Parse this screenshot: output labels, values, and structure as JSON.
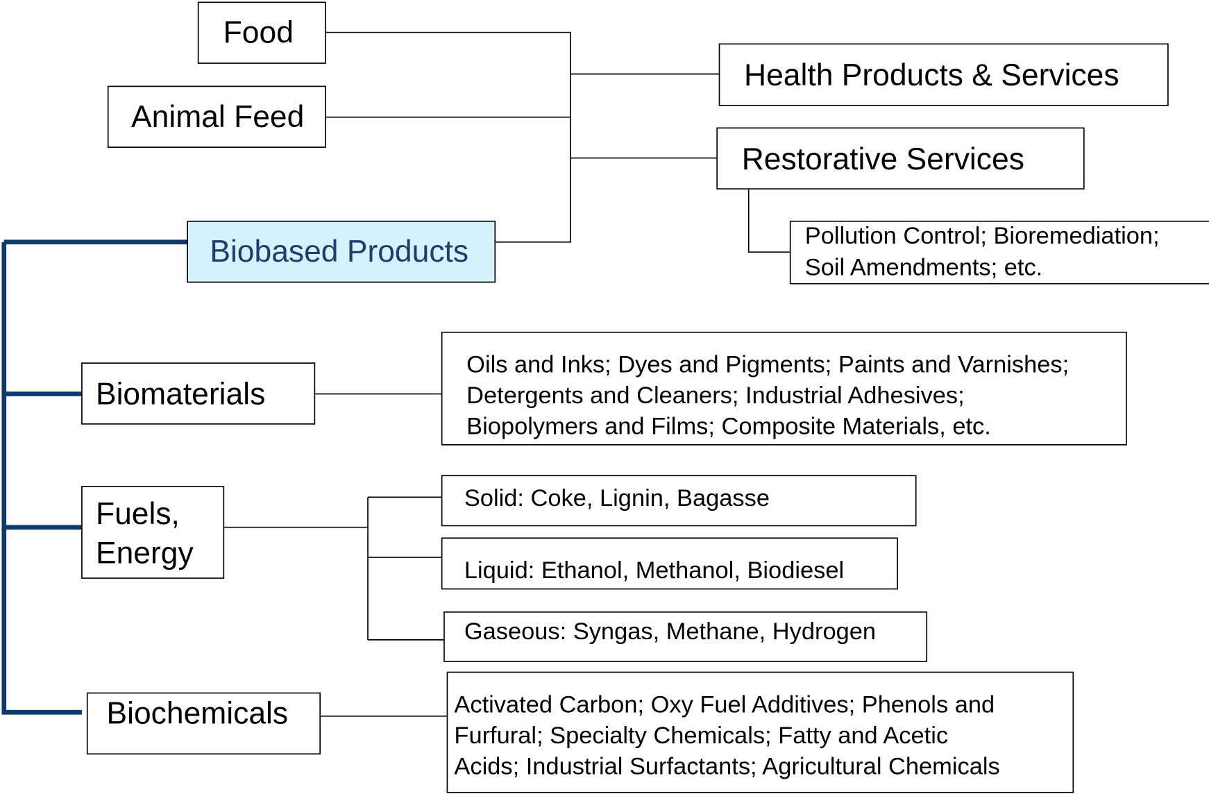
{
  "nodes": [
    {
      "label": "Food"
    },
    {
      "label": "Animal Feed"
    },
    {
      "label": "Biobased Products"
    },
    {
      "label": "Health Products & Services"
    },
    {
      "label": "Restorative Services"
    },
    {
      "lines": [
        "Pollution Control; Bioremediation;",
        "Soil Amendments; etc."
      ]
    },
    {
      "label": "Biomaterials"
    },
    {
      "lines": [
        "Oils and Inks; Dyes and Pigments; Paints and Varnishes;",
        "Detergents and Cleaners; Industrial Adhesives;",
        "Biopolymers and Films; Composite Materials, etc."
      ]
    },
    {
      "lines": [
        "Fuels,",
        "Energy"
      ]
    },
    {
      "label": "Solid:  Coke, Lignin, Bagasse"
    },
    {
      "label": "Liquid:  Ethanol, Methanol, Biodiesel"
    },
    {
      "label": "Gaseous: Syngas, Methane, Hydrogen"
    },
    {
      "label": "Biochemicals"
    },
    {
      "lines": [
        "Activated Carbon; Oxy Fuel Additives; Phenols and",
        "Furfural; Specialty Chemicals; Fatty and Acetic",
        "Acids; Industrial Surfactants; Agricultural Chemicals"
      ]
    }
  ]
}
